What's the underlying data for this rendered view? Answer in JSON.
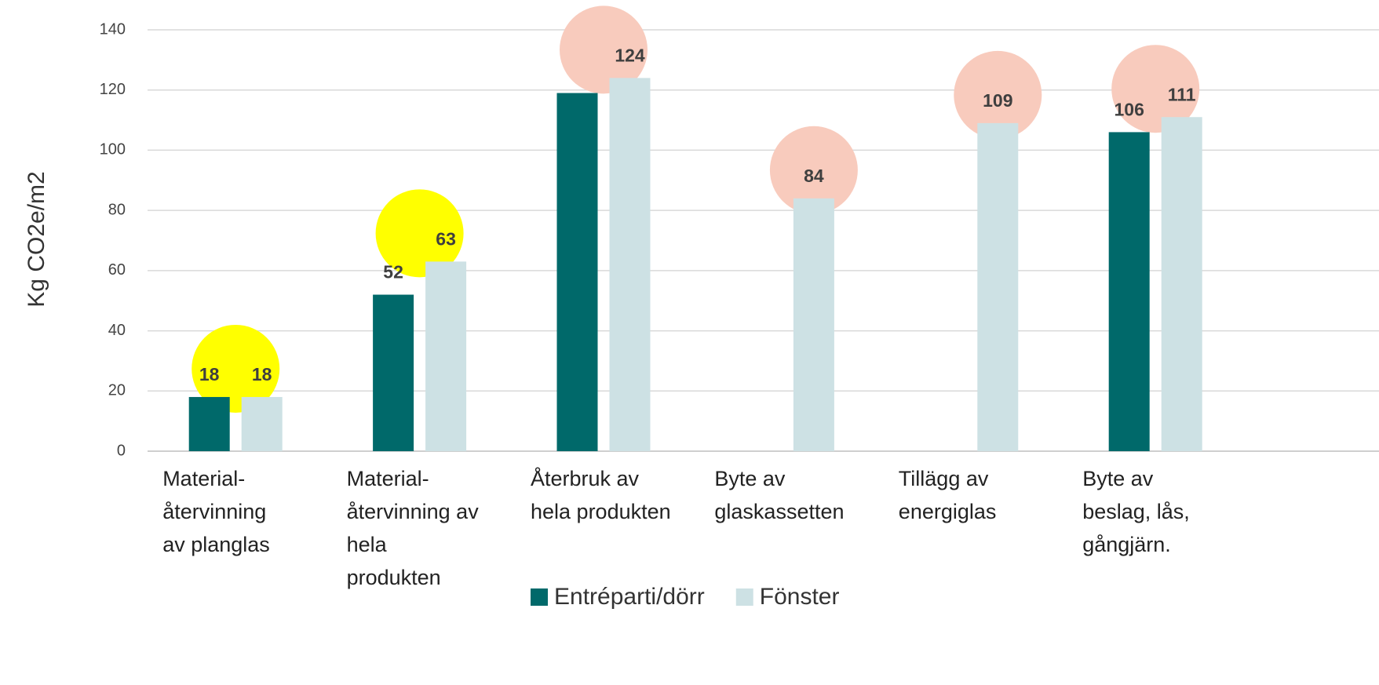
{
  "chart_data": {
    "type": "bar",
    "y_axis_label": "Kg CO2e/m2",
    "categories": [
      [
        "Material-",
        "återvinning",
        "av planglas"
      ],
      [
        "Material-",
        "återvinning av",
        "hela",
        "produkten"
      ],
      [
        "Återbruk av",
        "hela produkten"
      ],
      [
        "Byte av",
        "glaskassetten"
      ],
      [
        "Tillägg av",
        "energiglas"
      ],
      [
        "Byte av",
        "beslag, lås,",
        "gångjärn."
      ]
    ],
    "series": [
      {
        "name": "Entréparti/dörr",
        "color": "#00696a",
        "values": [
          18,
          52,
          119,
          null,
          null,
          106
        ],
        "value_labels": [
          "18",
          "52",
          null,
          null,
          null,
          "106"
        ]
      },
      {
        "name": "Fönster",
        "color": "#cde1e4",
        "values": [
          18,
          63,
          124,
          84,
          109,
          111
        ],
        "value_labels": [
          "18",
          "63",
          "124",
          "84",
          "109",
          "111"
        ]
      }
    ],
    "highlight_colors": [
      "#ffff00",
      "#ffff00",
      "#f8cbbd",
      "#f8cbbd",
      "#f8cbbd",
      "#f8cbbd"
    ],
    "ylim": [
      0,
      140
    ],
    "yticks": [
      0,
      20,
      40,
      60,
      80,
      100,
      120,
      140
    ],
    "grid": true,
    "legend": "bottom"
  }
}
